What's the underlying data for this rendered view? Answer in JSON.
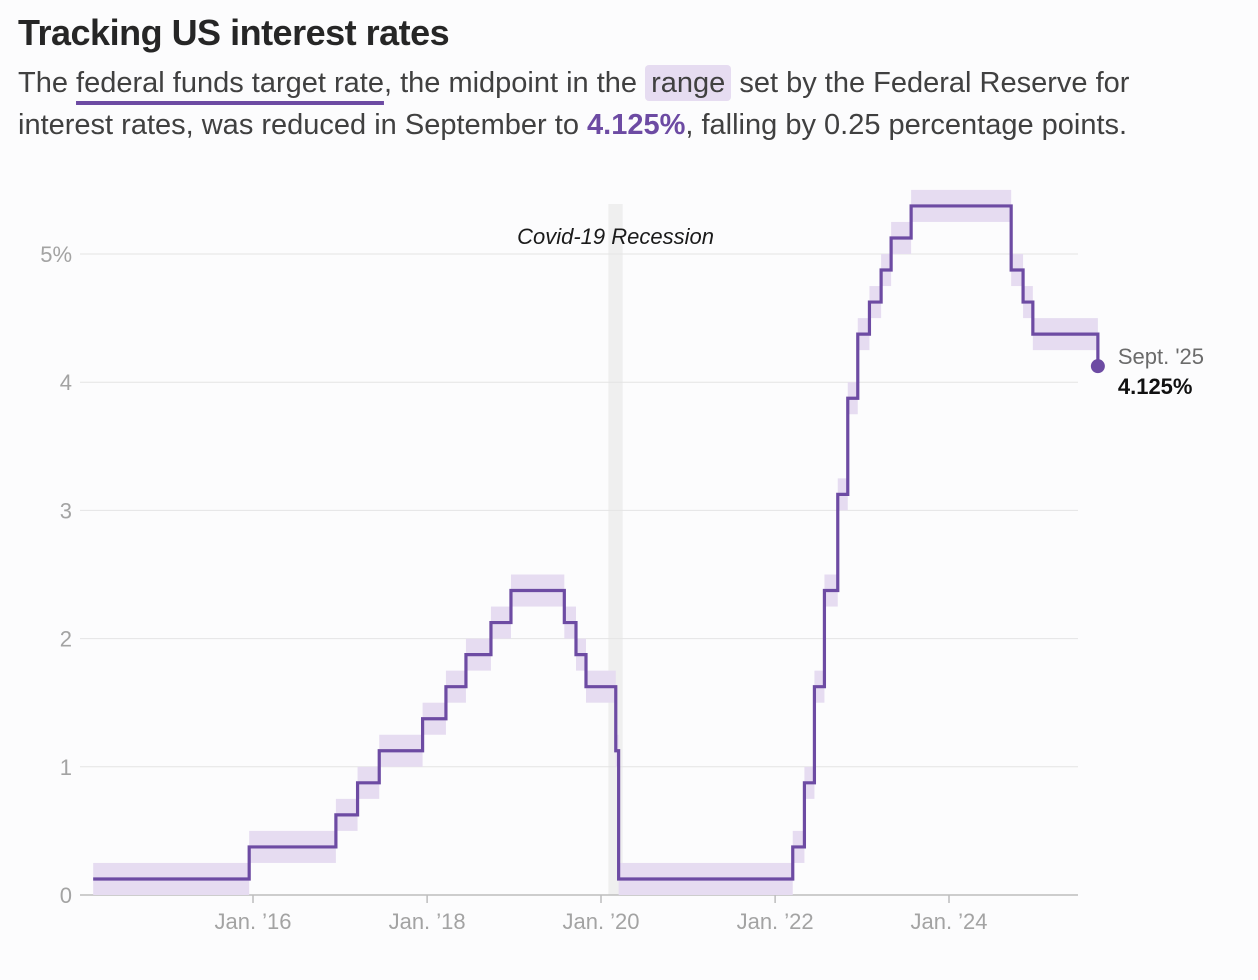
{
  "header": {
    "title": "Tracking US interest rates",
    "subtitle_parts": {
      "p1": "The ",
      "p2": "federal funds target rate",
      "p3": ", the midpoint in the ",
      "p4": "range",
      "p5": " set by the Federal Reserve for interest rates, was reduced in September to ",
      "p6": "4.125%",
      "p7": ", falling by 0.25 percentage points."
    }
  },
  "colors": {
    "line": "#6d4ba3",
    "band": "#e6dcf1",
    "grid": "#e4e4e4",
    "recession": "#efefef",
    "axis": "#bdbdbd"
  },
  "chart_data": {
    "type": "line",
    "title": "",
    "xlabel": "",
    "ylabel": "",
    "ylim": [
      0,
      5.5
    ],
    "y_ticks": [
      {
        "value": 0,
        "label": "0"
      },
      {
        "value": 1,
        "label": "1"
      },
      {
        "value": 2,
        "label": "2"
      },
      {
        "value": 3,
        "label": "3"
      },
      {
        "value": 4,
        "label": "4"
      },
      {
        "value": 5,
        "label": "5%"
      }
    ],
    "x_ticks": [
      {
        "date": "2016-01-01",
        "label": "Jan. ’16"
      },
      {
        "date": "2018-01-01",
        "label": "Jan. ’18"
      },
      {
        "date": "2020-01-01",
        "label": "Jan. ’20"
      },
      {
        "date": "2022-01-01",
        "label": "Jan. ’22"
      },
      {
        "date": "2024-01-01",
        "label": "Jan. ’24"
      }
    ],
    "x_start": "2014-03-01",
    "x_end": "2025-10-31",
    "grid": true,
    "recession": {
      "start": "2020-02-01",
      "end": "2020-04-01",
      "label": "Covid-19 Recession"
    },
    "series": [
      {
        "points": [
          {
            "date": "2014-03-01",
            "value": 0.125
          },
          {
            "date": "2015-12-16",
            "value": 0.375
          },
          {
            "date": "2016-12-14",
            "value": 0.625
          },
          {
            "date": "2017-03-15",
            "value": 0.875
          },
          {
            "date": "2017-06-14",
            "value": 1.125
          },
          {
            "date": "2017-12-13",
            "value": 1.375
          },
          {
            "date": "2018-03-21",
            "value": 1.625
          },
          {
            "date": "2018-06-13",
            "value": 1.875
          },
          {
            "date": "2018-09-26",
            "value": 2.125
          },
          {
            "date": "2018-12-19",
            "value": 2.375
          },
          {
            "date": "2019-07-31",
            "value": 2.125
          },
          {
            "date": "2019-09-18",
            "value": 1.875
          },
          {
            "date": "2019-10-30",
            "value": 1.625
          },
          {
            "date": "2020-03-03",
            "value": 1.125
          },
          {
            "date": "2020-03-15",
            "value": 0.125
          },
          {
            "date": "2022-03-16",
            "value": 0.375
          },
          {
            "date": "2022-05-04",
            "value": 0.875
          },
          {
            "date": "2022-06-15",
            "value": 1.625
          },
          {
            "date": "2022-07-27",
            "value": 2.375
          },
          {
            "date": "2022-09-21",
            "value": 3.125
          },
          {
            "date": "2022-11-02",
            "value": 3.875
          },
          {
            "date": "2022-12-14",
            "value": 4.375
          },
          {
            "date": "2023-02-01",
            "value": 4.625
          },
          {
            "date": "2023-03-22",
            "value": 4.875
          },
          {
            "date": "2023-05-03",
            "value": 5.125
          },
          {
            "date": "2023-07-26",
            "value": 5.375
          },
          {
            "date": "2024-09-18",
            "value": 4.875
          },
          {
            "date": "2024-11-07",
            "value": 4.625
          },
          {
            "date": "2024-12-18",
            "value": 4.375
          },
          {
            "date": "2025-09-17",
            "value": 4.125
          }
        ]
      }
    ],
    "range_half_width": 0.125,
    "end_label": {
      "date": "Sept. '25",
      "value": "4.125%"
    }
  }
}
